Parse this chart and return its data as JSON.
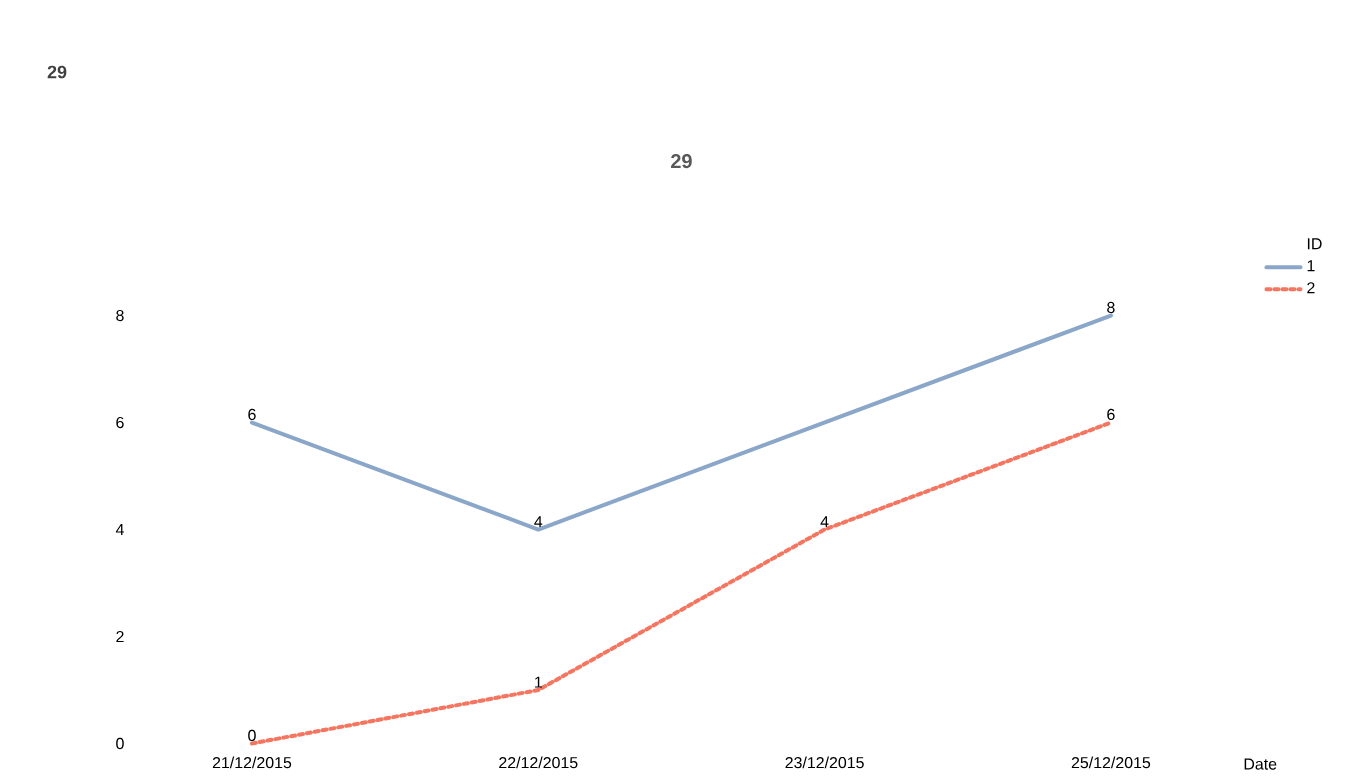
{
  "chart_data": {
    "type": "line",
    "title": "29",
    "xlabel": "Date",
    "legend_title": "ID",
    "annotations": [
      "29"
    ],
    "categories": [
      "21/12/2015",
      "22/12/2015",
      "23/12/2015",
      "25/12/2015"
    ],
    "series": [
      {
        "name": "1",
        "color": "#8aa6c8",
        "values": [
          6,
          4,
          null,
          8
        ],
        "line_style": "solid"
      },
      {
        "name": "2",
        "color": "#f47560",
        "values": [
          0,
          1,
          4,
          6
        ],
        "line_style": "dotted"
      }
    ],
    "ylim": [
      0,
      8
    ],
    "yticks": [
      0,
      2,
      4,
      6,
      8
    ],
    "data_labels": true,
    "legend": "top right",
    "grid": false,
    "marker": "none"
  }
}
